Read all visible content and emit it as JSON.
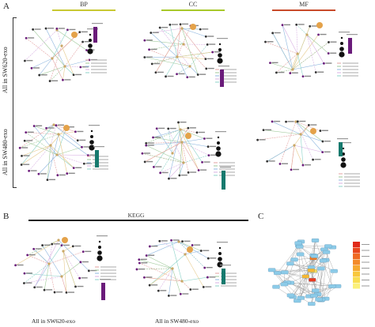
{
  "panels": {
    "A": {
      "letter": "A",
      "columns": [
        "BP",
        "CC",
        "MF"
      ],
      "column_colors": [
        "#c8c832",
        "#a8c82a",
        "#c84a2a"
      ],
      "rows": [
        "All in SW620-exo",
        "All in SW480-exo"
      ]
    },
    "B": {
      "letter": "B",
      "title": "KEGG",
      "labels": [
        "All in SW620-exo",
        "All in SW480-exo"
      ]
    },
    "C": {
      "letter": "C"
    }
  },
  "colors": {
    "accent_purple": "#6a1b7a",
    "accent_teal": "#167a6e",
    "hub_orange": "#e4a24a"
  }
}
